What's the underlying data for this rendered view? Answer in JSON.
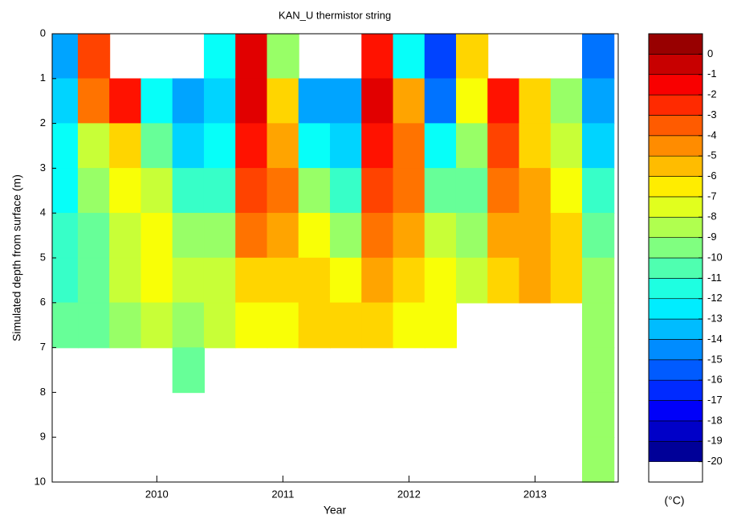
{
  "chart_data": {
    "type": "contour",
    "title": "KAN_U thermistor string",
    "xlabel": "Year",
    "ylabel": "Simulated depth from surface (m)",
    "colorbar_label": "(°C)",
    "xlim": [
      2009.17,
      2013.66
    ],
    "xticks": [
      2010,
      2011,
      2012,
      2013
    ],
    "ylim": [
      0,
      10
    ],
    "yticks": [
      0,
      1,
      2,
      3,
      4,
      5,
      6,
      7,
      8,
      9,
      10
    ],
    "y_inverted": true,
    "x": [
      2009.25,
      2009.5,
      2009.75,
      2010.0,
      2010.25,
      2010.5,
      2010.75,
      2011.0,
      2011.25,
      2011.5,
      2011.75,
      2012.0,
      2012.25,
      2012.5,
      2012.75,
      2013.0,
      2013.25,
      2013.5
    ],
    "y": [
      0.5,
      1.5,
      2.5,
      3.5,
      4.5,
      5.5,
      6.5,
      7.5,
      8.5,
      9.5
    ],
    "z": [
      [
        -14,
        -13,
        -12,
        -12,
        -11,
        -11,
        -10,
        null,
        null,
        null
      ],
      [
        -3,
        -4,
        -8,
        -9,
        -10,
        -10,
        -10,
        null,
        null,
        null
      ],
      [
        null,
        -2,
        -6,
        -7,
        -8,
        -8,
        -9,
        null,
        null,
        null
      ],
      [
        null,
        -12,
        -10,
        -8,
        -7,
        -7,
        -8,
        null,
        null,
        null
      ],
      [
        null,
        -14,
        -13,
        -11,
        -9,
        -8,
        -9,
        -10,
        null,
        null
      ],
      [
        -12,
        -13,
        -12,
        -11,
        -9,
        -8,
        -8,
        null,
        null,
        null
      ],
      [
        -1,
        -1,
        -2,
        -3,
        -4,
        -6,
        -7,
        null,
        null,
        null
      ],
      [
        -9,
        -6,
        -5,
        -4,
        -5,
        -6,
        -7,
        null,
        null,
        null
      ],
      [
        null,
        -14,
        -12,
        -9,
        -7,
        -6,
        -6,
        null,
        null,
        null
      ],
      [
        null,
        -14,
        -13,
        -11,
        -9,
        -7,
        -6,
        null,
        null,
        null
      ],
      [
        -2,
        -1,
        -2,
        -3,
        -4,
        -5,
        -6,
        null,
        null,
        null
      ],
      [
        -12,
        -5,
        -4,
        -4,
        -5,
        -6,
        -7,
        null,
        null,
        null
      ],
      [
        -16,
        -15,
        -12,
        -10,
        -8,
        -7,
        -7,
        null,
        null,
        null
      ],
      [
        -6,
        -7,
        -9,
        -10,
        -9,
        -8,
        null,
        null,
        null,
        null
      ],
      [
        null,
        -2,
        -3,
        -4,
        -5,
        -6,
        null,
        null,
        null,
        null
      ],
      [
        null,
        -6,
        -6,
        -5,
        -5,
        -5,
        null,
        null,
        null,
        null
      ],
      [
        null,
        -9,
        -8,
        -7,
        -6,
        -6,
        null,
        null,
        null,
        null
      ],
      [
        -15,
        -14,
        -13,
        -11,
        -10,
        -9,
        -9,
        -9,
        -9,
        -9
      ]
    ],
    "colormap": "jet",
    "clim": [
      -20,
      1
    ],
    "cbar_lim": [
      -21,
      1
    ],
    "cticks": [
      0,
      -1,
      -2,
      -3,
      -4,
      -5,
      -6,
      -7,
      -8,
      -9,
      -10,
      -11,
      -12,
      -13,
      -14,
      -15,
      -16,
      -17,
      -18,
      -19,
      -20
    ]
  }
}
